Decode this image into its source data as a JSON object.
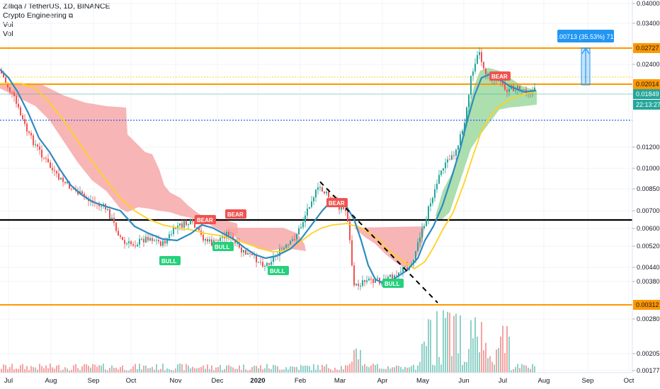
{
  "header": {
    "symbol_line": "Zilliqa / TetherUS, 1D, BINANCE",
    "indicator_1": "Crypto Engineering",
    "indicator_1_icon": "copy-icon",
    "indicator_2": "Vol",
    "indicator_3": "Vol"
  },
  "price_axis": {
    "ticks": [
      "0.04000",
      "0.03400",
      "0.02400",
      "0.01400",
      "0.01200",
      "0.01000",
      "0.00850",
      "0.00700",
      "0.00600",
      "0.00520",
      "0.00440",
      "0.00380",
      "0.00280",
      "0.00205",
      "0.00177"
    ],
    "tags": [
      {
        "text": "0.02727",
        "color": "#ff9800",
        "kind": "orange"
      },
      {
        "text": "0.02014",
        "color": "#ff9800",
        "kind": "orange"
      },
      {
        "text": "0.01849",
        "color": "#26a69a",
        "kind": "last"
      },
      {
        "text": "22:13:27",
        "color": "#26a69a",
        "kind": "timer"
      },
      {
        "text": "0.00312",
        "color": "#ff9800",
        "kind": "orange"
      }
    ]
  },
  "time_axis": [
    "Jul",
    "Aug",
    "Sep",
    "Oct",
    "Nov",
    "Dec",
    "2020",
    "Feb",
    "Mar",
    "Apr",
    "May",
    "Jun",
    "Jul",
    "Aug",
    "Sep",
    "Oct"
  ],
  "measure_label": "0.00713 (35.53%) 713",
  "signals": [
    {
      "text": "BULL",
      "kind": "bull"
    },
    {
      "text": "BULL",
      "kind": "bull"
    },
    {
      "text": "BULL",
      "kind": "bull"
    },
    {
      "text": "BULL",
      "kind": "bull"
    },
    {
      "text": "BEAR",
      "kind": "bear"
    },
    {
      "text": "BEAR",
      "kind": "bear"
    },
    {
      "text": "BEAR",
      "kind": "bear"
    },
    {
      "text": "BEAR",
      "kind": "bear"
    }
  ],
  "colors": {
    "up": "#26a69a",
    "down": "#ef5350",
    "blue_ma": "#2e8bc0",
    "yellow_ma": "#ffd21f",
    "orange": "#ff9800",
    "dotted_blue": "#2962ff",
    "cloud_red": "#f7a8a8",
    "cloud_green": "#9ed8a0",
    "measure": "#2196f3"
  }
}
